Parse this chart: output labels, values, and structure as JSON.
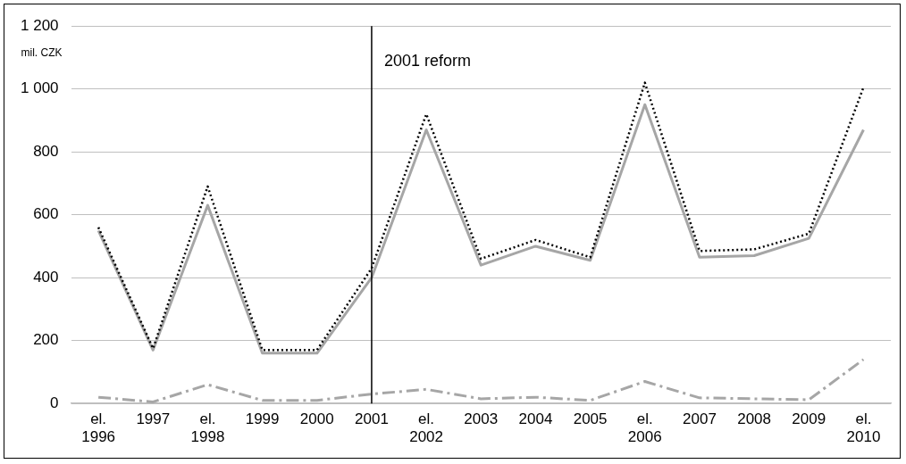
{
  "chart_data": {
    "type": "line",
    "ylabel": "mil. CZK",
    "categories": [
      "el. 1996",
      "1997",
      "el. 1998",
      "1999",
      "2000",
      "2001",
      "el. 2002",
      "2003",
      "2004",
      "2005",
      "el. 2006",
      "2007",
      "2008",
      "2009",
      "el. 2010"
    ],
    "series": [
      {
        "color": "#000000",
        "line_style": "dotted",
        "values": [
          560,
          175,
          690,
          170,
          170,
          430,
          920,
          460,
          520,
          465,
          1020,
          485,
          490,
          540,
          1005
        ]
      },
      {
        "color": "#a6a6a6",
        "line_style": "solid",
        "values": [
          550,
          170,
          630,
          160,
          160,
          400,
          870,
          440,
          500,
          455,
          950,
          465,
          470,
          525,
          870
        ]
      },
      {
        "color": "#a6a6a6",
        "line_style": "dashed",
        "values": [
          20,
          5,
          60,
          10,
          10,
          30,
          45,
          15,
          20,
          10,
          70,
          18,
          15,
          12,
          140
        ]
      }
    ],
    "ylim": [
      0,
      1200
    ],
    "yticks": [
      0,
      200,
      400,
      600,
      800,
      {
        "value": 1000,
        "label": "1 000"
      },
      {
        "value": 1200,
        "label": "1 200"
      }
    ],
    "grid": "y",
    "legend": false,
    "marker": "none",
    "ref_lines": [
      {
        "axis": "x",
        "value": "2001",
        "label": "2001 reform",
        "color": "#000000"
      }
    ]
  }
}
